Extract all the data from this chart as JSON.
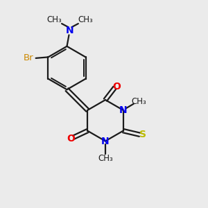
{
  "background_color": "#ebebeb",
  "bond_color": "#1a1a1a",
  "N_color": "#0000ee",
  "O_color": "#ee0000",
  "S_color": "#bbbb00",
  "Br_color": "#cc8800",
  "figsize": [
    3.0,
    3.0
  ],
  "dpi": 100,
  "xlim": [
    0,
    10
  ],
  "ylim": [
    0,
    10
  ]
}
